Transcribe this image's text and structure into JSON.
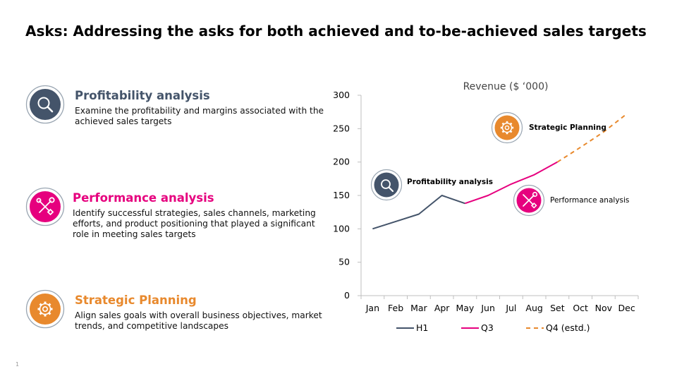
{
  "title": "Asks: Addressing the asks for both achieved and to-be-achieved sales targets",
  "slide_number": "1",
  "colors": {
    "dark": "#44546a",
    "pink": "#e6007e",
    "orange": "#e8892d",
    "ring": "#9aa6b2"
  },
  "items": [
    {
      "heading": "Profitability analysis",
      "description": "Examine the profitability and margins associated with the achieved sales targets",
      "icon": "magnifier-icon",
      "color": "#44546a"
    },
    {
      "heading": "Performance analysis",
      "description": "Identify successful strategies, sales channels, marketing efforts, and product positioning that played a significant role in meeting sales targets",
      "icon": "tools-icon",
      "color": "#e6007e"
    },
    {
      "heading": "Strategic Planning",
      "description": "Align sales goals with overall business objectives, market trends, and competitive landscapes",
      "icon": "gear-icon",
      "color": "#e8892d"
    }
  ],
  "chart_data": {
    "type": "line",
    "title": "Revenue ($ ‘000)",
    "categories": [
      "Jan",
      "Feb",
      "Mar",
      "Apr",
      "May",
      "Jun",
      "Jul",
      "Aug",
      "Set",
      "Oct",
      "Nov",
      "Dec"
    ],
    "ylim": [
      0,
      300
    ],
    "yticks": [
      0,
      50,
      100,
      150,
      200,
      250,
      300
    ],
    "grid": false,
    "legend": "bottom",
    "series": [
      {
        "name": "H1",
        "color": "#44546a",
        "dash": false,
        "points": [
          [
            0,
            100
          ],
          [
            1,
            111
          ],
          [
            2,
            122
          ],
          [
            3,
            150
          ],
          [
            4,
            138
          ]
        ]
      },
      {
        "name": "Q3",
        "color": "#e6007e",
        "dash": false,
        "points": [
          [
            4,
            138
          ],
          [
            5,
            150
          ],
          [
            6,
            167
          ],
          [
            7,
            181
          ],
          [
            8,
            200
          ]
        ]
      },
      {
        "name": "Q4 (estd.)",
        "color": "#e8892d",
        "dash": true,
        "points": [
          [
            8,
            200
          ],
          [
            9,
            222
          ],
          [
            10,
            245
          ],
          [
            11,
            272
          ]
        ]
      }
    ],
    "annotations": [
      {
        "label": "Profitability analysis",
        "icon": "magnifier-icon",
        "color": "#44546a"
      },
      {
        "label": "Strategic Planning",
        "icon": "gear-icon",
        "color": "#e8892d"
      },
      {
        "label": "Performance analysis",
        "icon": "tools-icon",
        "color": "#e6007e"
      }
    ]
  }
}
